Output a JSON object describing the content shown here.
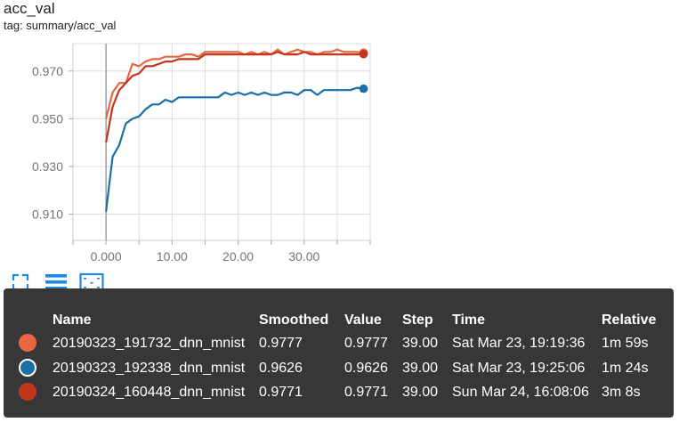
{
  "header": {
    "title": "acc_val",
    "tag": "tag: summary/acc_val"
  },
  "toolbar": {
    "items": [
      {
        "icon": "fit-domain-icon"
      },
      {
        "icon": "toggle-log-scale-icon"
      },
      {
        "icon": "download-icon"
      }
    ]
  },
  "chart_data": {
    "type": "line",
    "title": "acc_val",
    "xlabel": "",
    "ylabel": "",
    "xlim": [
      -5,
      40
    ],
    "ylim": [
      0.899,
      0.9815
    ],
    "xticks": [
      0,
      10,
      20,
      30
    ],
    "xtick_labels": [
      "0.000",
      "10.00",
      "20.00",
      "30.00"
    ],
    "yticks": [
      0.91,
      0.93,
      0.95,
      0.97
    ],
    "ytick_labels": [
      "0.910",
      "0.930",
      "0.950",
      "0.970"
    ],
    "grid": true,
    "series": [
      {
        "name": "20190323_191732_dnn_mnist",
        "color": "#e8653f",
        "x": [
          0,
          1,
          2,
          3,
          4,
          5,
          6,
          7,
          8,
          9,
          10,
          11,
          12,
          13,
          14,
          15,
          16,
          17,
          18,
          19,
          20,
          21,
          22,
          23,
          24,
          25,
          26,
          27,
          28,
          29,
          30,
          31,
          32,
          33,
          34,
          35,
          36,
          37,
          38,
          39
        ],
        "y": [
          0.95,
          0.961,
          0.965,
          0.965,
          0.973,
          0.972,
          0.974,
          0.975,
          0.975,
          0.976,
          0.976,
          0.976,
          0.977,
          0.977,
          0.976,
          0.978,
          0.978,
          0.978,
          0.978,
          0.978,
          0.978,
          0.977,
          0.978,
          0.977,
          0.978,
          0.977,
          0.979,
          0.977,
          0.978,
          0.979,
          0.978,
          0.978,
          0.977,
          0.978,
          0.978,
          0.979,
          0.978,
          0.978,
          0.978,
          0.9777
        ]
      },
      {
        "name": "20190323_192338_dnn_mnist",
        "color": "#1a6fa6",
        "x": [
          0,
          1,
          2,
          3,
          4,
          5,
          6,
          7,
          8,
          9,
          10,
          11,
          12,
          13,
          14,
          15,
          16,
          17,
          18,
          19,
          20,
          21,
          22,
          23,
          24,
          25,
          26,
          27,
          28,
          29,
          30,
          31,
          32,
          33,
          34,
          35,
          36,
          37,
          38,
          39
        ],
        "y": [
          0.911,
          0.934,
          0.939,
          0.948,
          0.95,
          0.951,
          0.954,
          0.956,
          0.956,
          0.958,
          0.957,
          0.959,
          0.959,
          0.959,
          0.959,
          0.959,
          0.959,
          0.959,
          0.961,
          0.96,
          0.961,
          0.96,
          0.961,
          0.96,
          0.961,
          0.96,
          0.96,
          0.961,
          0.961,
          0.96,
          0.962,
          0.962,
          0.96,
          0.962,
          0.962,
          0.962,
          0.962,
          0.962,
          0.963,
          0.9626
        ]
      },
      {
        "name": "20190324_160448_dnn_mnist",
        "color": "#c1361c",
        "x": [
          0,
          1,
          2,
          3,
          4,
          5,
          6,
          7,
          8,
          9,
          10,
          11,
          12,
          13,
          14,
          15,
          16,
          17,
          18,
          19,
          20,
          21,
          22,
          23,
          24,
          25,
          26,
          27,
          28,
          29,
          30,
          31,
          32,
          33,
          34,
          35,
          36,
          37,
          38,
          39
        ],
        "y": [
          0.94,
          0.955,
          0.962,
          0.965,
          0.968,
          0.969,
          0.972,
          0.972,
          0.973,
          0.974,
          0.974,
          0.975,
          0.975,
          0.975,
          0.975,
          0.977,
          0.977,
          0.977,
          0.977,
          0.977,
          0.977,
          0.977,
          0.977,
          0.977,
          0.977,
          0.977,
          0.978,
          0.977,
          0.977,
          0.977,
          0.978,
          0.977,
          0.977,
          0.977,
          0.977,
          0.977,
          0.977,
          0.977,
          0.977,
          0.9771
        ]
      }
    ]
  },
  "tooltip": {
    "headers": {
      "name": "Name",
      "smoothed": "Smoothed",
      "value": "Value",
      "step": "Step",
      "time": "Time",
      "relative": "Relative"
    },
    "rows": [
      {
        "color": "#e8653f",
        "name": "20190323_191732_dnn_mnist",
        "smoothed": "0.9777",
        "value": "0.9777",
        "step": "39.00",
        "time": "Sat Mar 23, 19:19:36",
        "relative": "1m 59s"
      },
      {
        "color": "#1a6fa6",
        "name": "20190323_192338_dnn_mnist",
        "smoothed": "0.9626",
        "value": "0.9626",
        "step": "39.00",
        "time": "Sat Mar 23, 19:25:06",
        "relative": "1m 24s"
      },
      {
        "color": "#c1361c",
        "name": "20190324_160448_dnn_mnist",
        "smoothed": "0.9771",
        "value": "0.9771",
        "step": "39.00",
        "time": "Sun Mar 24, 16:08:06",
        "relative": "3m 8s"
      }
    ]
  }
}
